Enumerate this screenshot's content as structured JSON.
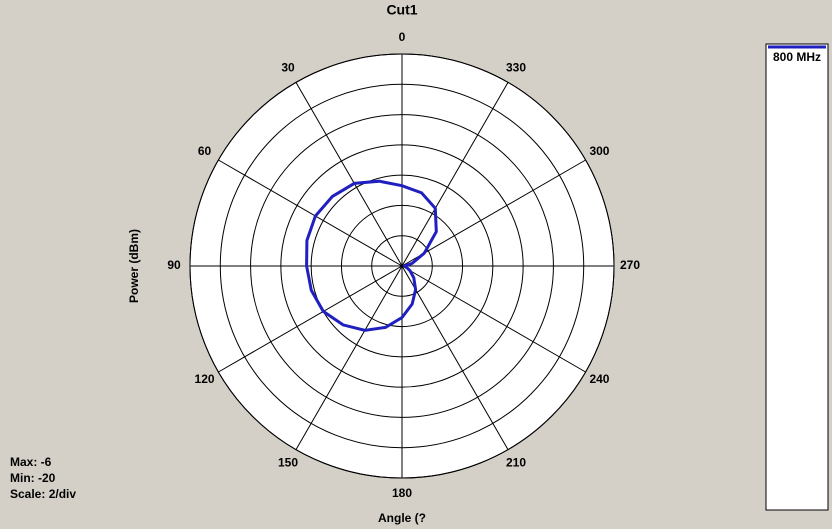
{
  "chart_data": {
    "type": "polar",
    "title": "Cut1",
    "y_label": "Power  (dBm)",
    "x_label": "Angle  (?",
    "stats": [
      "Max: -6",
      "Min: -20",
      "Scale: 2/div"
    ],
    "angles": [
      0,
      15,
      30,
      45,
      60,
      75,
      90,
      105,
      120,
      135,
      150,
      165,
      180,
      195,
      210,
      225,
      240,
      255,
      270,
      285,
      300,
      315,
      330,
      345
    ],
    "series": [
      {
        "name": "800 MHz",
        "color": "#2020c0",
        "values": [
          -14.7,
          -14.2,
          -13.7,
          -13.5,
          -13.4,
          -13.5,
          -13.7,
          -13.8,
          -14.0,
          -14.5,
          -15.1,
          -15.8,
          -16.6,
          -17.4,
          -18.2,
          -18.9,
          -19.4,
          -19.7,
          -19.8,
          -19.3,
          -18.3,
          -16.8,
          -15.6,
          -15.0
        ]
      }
    ],
    "rlim": [
      -20,
      -6
    ],
    "rticks": [
      -20,
      -18,
      -16,
      -14,
      -12,
      -10,
      -8,
      -6
    ],
    "angle_ticks": [
      0,
      30,
      60,
      90,
      120,
      150,
      180,
      210,
      240,
      270,
      300,
      330
    ],
    "grid": true
  }
}
